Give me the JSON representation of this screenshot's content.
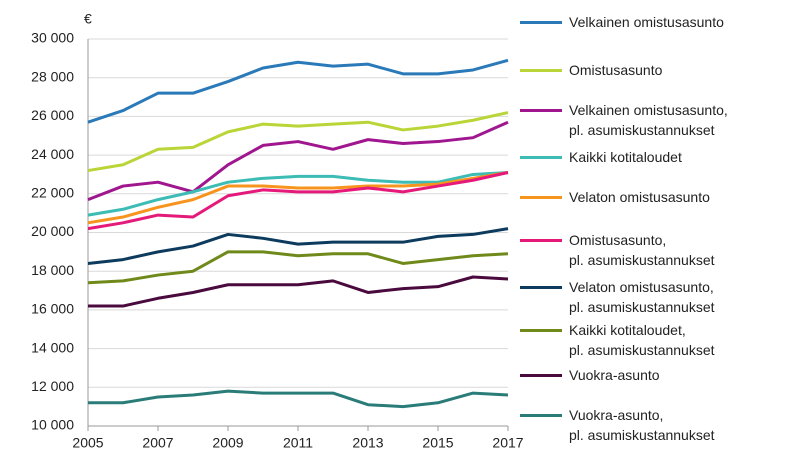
{
  "chart_data": {
    "type": "line",
    "y_label": "€",
    "x": [
      2005,
      2006,
      2007,
      2008,
      2009,
      2010,
      2011,
      2012,
      2013,
      2014,
      2015,
      2016,
      2017
    ],
    "xlim": [
      2005,
      2017
    ],
    "xticks": [
      2005,
      2007,
      2009,
      2011,
      2013,
      2015,
      2017
    ],
    "ylim": [
      10000,
      30000
    ],
    "yticks": [
      {
        "value": 10000,
        "label": "10 000"
      },
      {
        "value": 12000,
        "label": "12 000"
      },
      {
        "value": 14000,
        "label": "14 000"
      },
      {
        "value": 16000,
        "label": "16 000"
      },
      {
        "value": 18000,
        "label": "18 000"
      },
      {
        "value": 20000,
        "label": "20 000"
      },
      {
        "value": 22000,
        "label": "22 000"
      },
      {
        "value": 24000,
        "label": "24 000"
      },
      {
        "value": 26000,
        "label": "26 000"
      },
      {
        "value": 28000,
        "label": "28 000"
      },
      {
        "value": 30000,
        "label": "30 000"
      }
    ],
    "grid": true,
    "legend": "right",
    "series": [
      {
        "name": "Velkainen omistusasunto",
        "color": "#2a7ab9",
        "values": [
          25700,
          26300,
          27200,
          27200,
          27800,
          28500,
          28800,
          28600,
          28700,
          28200,
          28200,
          28400,
          28900
        ]
      },
      {
        "name": "Omistusasunto",
        "color": "#b9d537",
        "values": [
          23200,
          23500,
          24300,
          24400,
          25200,
          25600,
          25500,
          25600,
          25700,
          25300,
          25500,
          25800,
          26200
        ]
      },
      {
        "name": "Velkainen omistusasunto,\npl. asumiskustannukset",
        "color": "#a0168f",
        "values": [
          21700,
          22400,
          22600,
          22100,
          23500,
          24500,
          24700,
          24300,
          24800,
          24600,
          24700,
          24900,
          25700
        ]
      },
      {
        "name": "Kaikki kotitaloudet",
        "color": "#3cbcb4",
        "values": [
          20900,
          21200,
          21700,
          22100,
          22600,
          22800,
          22900,
          22900,
          22700,
          22600,
          22600,
          23000,
          23100
        ]
      },
      {
        "name": "Velaton omistusasunto",
        "color": "#f7941d",
        "values": [
          20500,
          20800,
          21300,
          21700,
          22400,
          22400,
          22300,
          22300,
          22400,
          22400,
          22500,
          22800,
          23100
        ]
      },
      {
        "name": "Omistusasunto,\npl. asumiskustannukset",
        "color": "#e5197a",
        "values": [
          20200,
          20500,
          20900,
          20800,
          21900,
          22200,
          22100,
          22100,
          22300,
          22100,
          22400,
          22700,
          23100
        ]
      },
      {
        "name": "Velaton omistusasunto,\npl. asumiskustannukset",
        "color": "#0d3b5e",
        "values": [
          18400,
          18600,
          19000,
          19300,
          19900,
          19700,
          19400,
          19500,
          19500,
          19500,
          19800,
          19900,
          20200
        ]
      },
      {
        "name": "Kaikki kotitaloudet,\npl. asumiskustannukset",
        "color": "#6f8a1b",
        "values": [
          17400,
          17500,
          17800,
          18000,
          19000,
          19000,
          18800,
          18900,
          18900,
          18400,
          18600,
          18800,
          18900
        ]
      },
      {
        "name": "Vuokra-asunto",
        "color": "#4a0a3e",
        "values": [
          16200,
          16200,
          16600,
          16900,
          17300,
          17300,
          17300,
          17500,
          16900,
          17100,
          17200,
          17700,
          17600
        ]
      },
      {
        "name": "Vuokra-asunto,\npl. asumiskustannukset",
        "color": "#2a7c79",
        "values": [
          11200,
          11200,
          11500,
          11600,
          11800,
          11700,
          11700,
          11700,
          11100,
          11000,
          11200,
          11700,
          11600
        ]
      }
    ]
  }
}
